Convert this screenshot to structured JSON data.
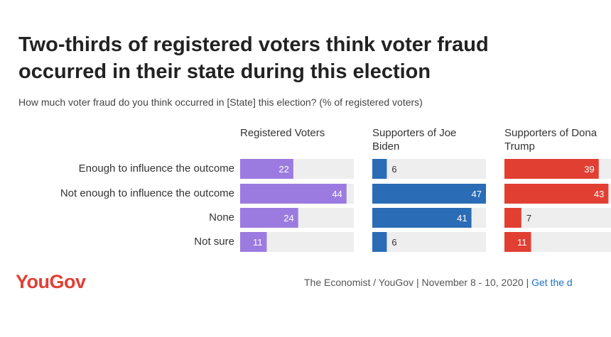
{
  "header": {
    "title_line1": "Two-thirds of registered voters think voter fraud",
    "title_line2": "occurred in their state during this election",
    "subtitle": "How much voter fraud do you think occurred in [State] this election? (% of registered voters)"
  },
  "chart_data": {
    "type": "bar",
    "orientation": "horizontal",
    "categories": [
      "Enough to influence the outcome",
      "Not enough to influence the outcome",
      "None",
      "Not sure"
    ],
    "series": [
      {
        "name": "Registered Voters",
        "header_lines": [
          "Registered Voters"
        ],
        "color": "#9b7be0",
        "values": [
          22,
          44,
          24,
          11
        ]
      },
      {
        "name": "Supporters of Joe Biden",
        "header_lines": [
          "Supporters of Joe",
          "Biden"
        ],
        "color": "#2a6cb5",
        "values": [
          6,
          47,
          41,
          6
        ]
      },
      {
        "name": "Supporters of Donald Trump",
        "header_lines": [
          "Supporters of Dona",
          "Trump"
        ],
        "color": "#e23f33",
        "values": [
          39,
          43,
          7,
          11
        ]
      }
    ],
    "xlim": [
      0,
      47
    ],
    "track_color": "#eeeeee"
  },
  "footer": {
    "logo": "YouGov",
    "source": "The Economist / YouGov | November 8 - 10, 2020 | ",
    "link": "Get the d"
  }
}
